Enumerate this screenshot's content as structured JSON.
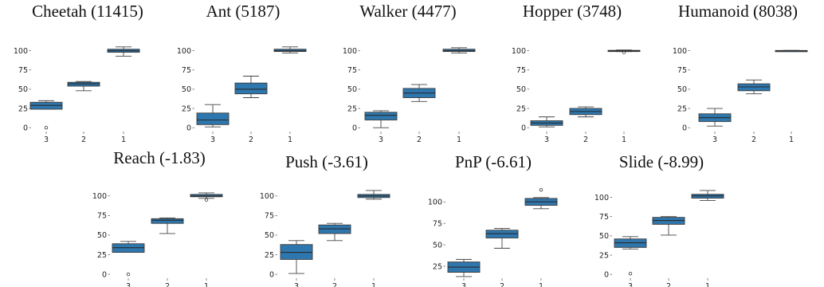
{
  "chart_data": [
    {
      "type": "box",
      "title": "Cheetah (11415)",
      "categories": [
        "3",
        "2",
        "1"
      ],
      "yticks": [
        0,
        25,
        50,
        75,
        100
      ],
      "ylim": [
        -4,
        110
      ],
      "boxes": [
        {
          "whislo": 24,
          "q1": 24,
          "med": 29,
          "q3": 33,
          "whishi": 35,
          "fliers": [
            0
          ]
        },
        {
          "whislo": 48,
          "q1": 54,
          "med": 57,
          "q3": 59,
          "whishi": 60,
          "fliers": []
        },
        {
          "whislo": 93,
          "q1": 98,
          "med": 100,
          "q3": 102,
          "whishi": 105,
          "fliers": []
        }
      ]
    },
    {
      "type": "box",
      "title": "Ant (5187)",
      "categories": [
        "3",
        "2",
        "1"
      ],
      "yticks": [
        0,
        25,
        50,
        75,
        100
      ],
      "ylim": [
        -4,
        110
      ],
      "boxes": [
        {
          "whislo": 1,
          "q1": 4,
          "med": 10,
          "q3": 19,
          "whishi": 30,
          "fliers": []
        },
        {
          "whislo": 39,
          "q1": 44,
          "med": 50,
          "q3": 58,
          "whishi": 67,
          "fliers": []
        },
        {
          "whislo": 97,
          "q1": 99,
          "med": 100,
          "q3": 102,
          "whishi": 105,
          "fliers": []
        }
      ]
    },
    {
      "type": "box",
      "title": "Walker (4477)",
      "categories": [
        "3",
        "2",
        "1"
      ],
      "yticks": [
        0,
        25,
        50,
        75,
        100
      ],
      "ylim": [
        -4,
        110
      ],
      "boxes": [
        {
          "whislo": 0,
          "q1": 10,
          "med": 16,
          "q3": 20,
          "whishi": 22,
          "fliers": []
        },
        {
          "whislo": 34,
          "q1": 39,
          "med": 45,
          "q3": 51,
          "whishi": 56,
          "fliers": []
        },
        {
          "whislo": 97,
          "q1": 99,
          "med": 100,
          "q3": 102,
          "whishi": 104,
          "fliers": []
        }
      ]
    },
    {
      "type": "box",
      "title": "Hopper (3748)",
      "categories": [
        "3",
        "2",
        "1"
      ],
      "yticks": [
        0,
        25,
        50,
        75,
        100
      ],
      "ylim": [
        -4,
        110
      ],
      "boxes": [
        {
          "whislo": 1,
          "q1": 3,
          "med": 6,
          "q3": 9,
          "whishi": 14,
          "fliers": []
        },
        {
          "whislo": 14,
          "q1": 17,
          "med": 21,
          "q3": 25,
          "whishi": 27,
          "fliers": []
        },
        {
          "whislo": 99,
          "q1": 99.5,
          "med": 100,
          "q3": 100.5,
          "whishi": 101,
          "fliers": [
            98
          ]
        }
      ]
    },
    {
      "type": "box",
      "title": "Humanoid (8038)",
      "categories": [
        "3",
        "2",
        "1"
      ],
      "yticks": [
        0,
        25,
        50,
        75,
        100
      ],
      "ylim": [
        -4,
        110
      ],
      "boxes": [
        {
          "whislo": 2,
          "q1": 8,
          "med": 13,
          "q3": 18,
          "whishi": 25,
          "fliers": []
        },
        {
          "whislo": 44,
          "q1": 48,
          "med": 53,
          "q3": 57,
          "whishi": 62,
          "fliers": []
        },
        {
          "whislo": 99.5,
          "q1": 99.7,
          "med": 100,
          "q3": 100.3,
          "whishi": 100.5,
          "fliers": []
        }
      ]
    },
    {
      "type": "box",
      "title": "Reach (-1.83)",
      "categories": [
        "3",
        "2",
        "1"
      ],
      "yticks": [
        0,
        25,
        50,
        75,
        100
      ],
      "ylim": [
        -4,
        110
      ],
      "boxes": [
        {
          "whislo": 28,
          "q1": 28,
          "med": 34,
          "q3": 39,
          "whishi": 42,
          "fliers": [
            0
          ]
        },
        {
          "whislo": 52,
          "q1": 65,
          "med": 69,
          "q3": 71,
          "whishi": 72,
          "fliers": []
        },
        {
          "whislo": 97,
          "q1": 99,
          "med": 100,
          "q3": 102,
          "whishi": 104,
          "fliers": [
            95
          ]
        }
      ]
    },
    {
      "type": "box",
      "title": "Push (-3.61)",
      "categories": [
        "3",
        "2",
        "1"
      ],
      "yticks": [
        0,
        25,
        50,
        75,
        100
      ],
      "ylim": [
        -4,
        110
      ],
      "boxes": [
        {
          "whislo": 1,
          "q1": 19,
          "med": 28,
          "q3": 38,
          "whishi": 43,
          "fliers": []
        },
        {
          "whislo": 43,
          "q1": 52,
          "med": 58,
          "q3": 63,
          "whishi": 65,
          "fliers": []
        },
        {
          "whislo": 96,
          "q1": 98,
          "med": 100,
          "q3": 102,
          "whishi": 107,
          "fliers": []
        }
      ]
    },
    {
      "type": "box",
      "title": "PnP (-6.61)",
      "categories": [
        "3",
        "2",
        "1"
      ],
      "yticks": [
        25,
        50,
        75,
        100
      ],
      "ylim": [
        12,
        116
      ],
      "boxes": [
        {
          "whislo": 13,
          "q1": 18,
          "med": 24,
          "q3": 30,
          "whishi": 33,
          "fliers": []
        },
        {
          "whislo": 46,
          "q1": 58,
          "med": 63,
          "q3": 67,
          "whishi": 69,
          "fliers": []
        },
        {
          "whislo": 92,
          "q1": 96,
          "med": 100,
          "q3": 104,
          "whishi": 105,
          "fliers": [
            114
          ]
        }
      ]
    },
    {
      "type": "box",
      "title": "Slide (-8.99)",
      "categories": [
        "3",
        "2",
        "1"
      ],
      "yticks": [
        0,
        25,
        50,
        75,
        100
      ],
      "ylim": [
        -4,
        112
      ],
      "boxes": [
        {
          "whislo": 33,
          "q1": 35,
          "med": 41,
          "q3": 46,
          "whishi": 49,
          "fliers": [
            1
          ]
        },
        {
          "whislo": 51,
          "q1": 65,
          "med": 70,
          "q3": 74,
          "whishi": 75,
          "fliers": []
        },
        {
          "whislo": 96,
          "q1": 99,
          "med": 102,
          "q3": 104,
          "whishi": 109,
          "fliers": []
        }
      ]
    }
  ]
}
